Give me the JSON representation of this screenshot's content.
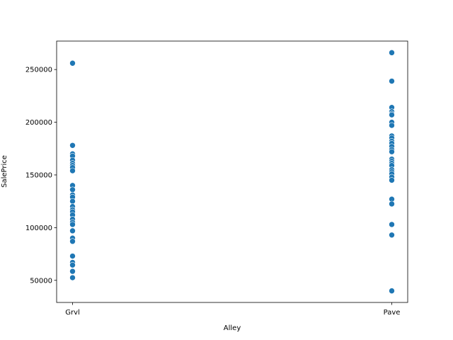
{
  "chart_data": {
    "type": "scatter",
    "xlabel": "Alley",
    "ylabel": "SalePrice",
    "categories": [
      "Grvl",
      "Pave"
    ],
    "ylim": [
      29000,
      277000
    ],
    "yticks": [
      50000,
      100000,
      150000,
      200000,
      250000
    ],
    "ytick_labels": [
      "50000",
      "100000",
      "150000",
      "200000",
      "250000"
    ],
    "grid": false,
    "legend": "none",
    "point_color": "#1f77b4",
    "series": [
      {
        "category": "Grvl",
        "values": [
          256000,
          178000,
          170000,
          168000,
          164000,
          161000,
          159000,
          157000,
          154000,
          140000,
          136000,
          131000,
          129000,
          125000,
          120000,
          117000,
          115000,
          112000,
          108000,
          105000,
          103000,
          97000,
          90000,
          87000,
          73000,
          67000,
          64500,
          58500,
          52500
        ]
      },
      {
        "category": "Pave",
        "values": [
          266000,
          239000,
          214000,
          210000,
          208000,
          207000,
          200000,
          197000,
          187000,
          185000,
          182000,
          180000,
          177000,
          174000,
          172000,
          165000,
          163000,
          161000,
          159000,
          155000,
          153000,
          151000,
          148000,
          145000,
          127000,
          122500,
          103000,
          93000,
          40000
        ]
      }
    ]
  }
}
